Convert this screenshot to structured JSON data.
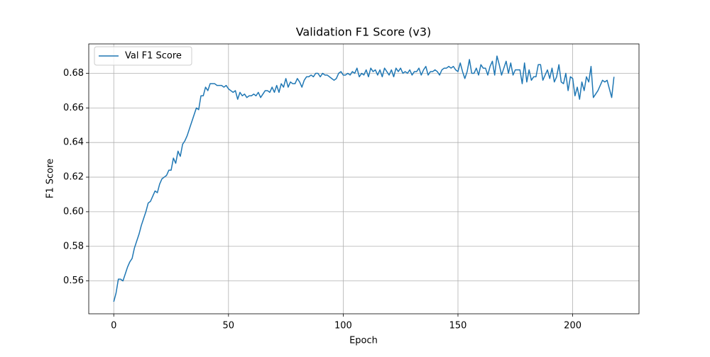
{
  "chart_data": {
    "type": "line",
    "title": "Validation F1 Score (v3)",
    "x_label": "Epoch",
    "y_label": "F1 Score",
    "x": [
      0,
      1,
      2,
      3,
      4,
      5,
      6,
      7,
      8,
      9,
      10,
      11,
      12,
      13,
      14,
      15,
      16,
      17,
      18,
      19,
      20,
      21,
      22,
      23,
      24,
      25,
      26,
      27,
      28,
      29,
      30,
      31,
      32,
      33,
      34,
      35,
      36,
      37,
      38,
      39,
      40,
      41,
      42,
      43,
      44,
      45,
      46,
      47,
      48,
      49,
      50,
      51,
      52,
      53,
      54,
      55,
      56,
      57,
      58,
      59,
      60,
      61,
      62,
      63,
      64,
      65,
      66,
      67,
      68,
      69,
      70,
      71,
      72,
      73,
      74,
      75,
      76,
      77,
      78,
      79,
      80,
      81,
      82,
      83,
      84,
      85,
      86,
      87,
      88,
      89,
      90,
      91,
      92,
      93,
      94,
      95,
      96,
      97,
      98,
      99,
      100,
      101,
      102,
      103,
      104,
      105,
      106,
      107,
      108,
      109,
      110,
      111,
      112,
      113,
      114,
      115,
      116,
      117,
      118,
      119,
      120,
      121,
      122,
      123,
      124,
      125,
      126,
      127,
      128,
      129,
      130,
      131,
      132,
      133,
      134,
      135,
      136,
      137,
      138,
      139,
      140,
      141,
      142,
      143,
      144,
      145,
      146,
      147,
      148,
      149,
      150,
      151,
      152,
      153,
      154,
      155,
      156,
      157,
      158,
      159,
      160,
      161,
      162,
      163,
      164,
      165,
      166,
      167,
      168,
      169,
      170,
      171,
      172,
      173,
      174,
      175,
      176,
      177,
      178,
      179,
      180,
      181,
      182,
      183,
      184,
      185,
      186,
      187,
      188,
      189,
      190,
      191,
      192,
      193,
      194,
      195,
      196,
      197,
      198,
      199,
      200,
      201,
      202,
      203,
      204,
      205,
      206,
      207,
      208,
      209,
      210,
      211,
      212,
      213,
      214,
      215,
      216,
      217,
      218
    ],
    "series": [
      {
        "name": "Val F1 Score",
        "color": "#1f77b4",
        "values": [
          0.548,
          0.553,
          0.561,
          0.561,
          0.56,
          0.564,
          0.568,
          0.571,
          0.573,
          0.579,
          0.583,
          0.587,
          0.592,
          0.596,
          0.6,
          0.605,
          0.606,
          0.609,
          0.612,
          0.611,
          0.616,
          0.619,
          0.62,
          0.621,
          0.624,
          0.624,
          0.631,
          0.628,
          0.635,
          0.632,
          0.639,
          0.641,
          0.644,
          0.648,
          0.652,
          0.656,
          0.66,
          0.659,
          0.667,
          0.667,
          0.672,
          0.67,
          0.674,
          0.674,
          0.674,
          0.673,
          0.673,
          0.673,
          0.672,
          0.673,
          0.671,
          0.67,
          0.669,
          0.67,
          0.665,
          0.669,
          0.667,
          0.668,
          0.666,
          0.667,
          0.667,
          0.668,
          0.667,
          0.669,
          0.666,
          0.668,
          0.67,
          0.67,
          0.669,
          0.672,
          0.669,
          0.673,
          0.669,
          0.674,
          0.672,
          0.677,
          0.672,
          0.675,
          0.674,
          0.674,
          0.677,
          0.675,
          0.672,
          0.676,
          0.678,
          0.678,
          0.679,
          0.678,
          0.68,
          0.68,
          0.678,
          0.68,
          0.679,
          0.679,
          0.678,
          0.677,
          0.676,
          0.677,
          0.68,
          0.681,
          0.679,
          0.679,
          0.68,
          0.679,
          0.681,
          0.68,
          0.683,
          0.678,
          0.68,
          0.679,
          0.682,
          0.678,
          0.683,
          0.681,
          0.682,
          0.679,
          0.682,
          0.678,
          0.683,
          0.681,
          0.679,
          0.682,
          0.678,
          0.683,
          0.681,
          0.683,
          0.68,
          0.681,
          0.68,
          0.682,
          0.679,
          0.681,
          0.681,
          0.683,
          0.679,
          0.682,
          0.684,
          0.679,
          0.681,
          0.681,
          0.682,
          0.681,
          0.679,
          0.682,
          0.683,
          0.683,
          0.684,
          0.683,
          0.684,
          0.682,
          0.681,
          0.686,
          0.681,
          0.677,
          0.681,
          0.688,
          0.68,
          0.68,
          0.683,
          0.679,
          0.685,
          0.683,
          0.683,
          0.679,
          0.684,
          0.687,
          0.679,
          0.69,
          0.685,
          0.679,
          0.683,
          0.687,
          0.68,
          0.686,
          0.679,
          0.682,
          0.682,
          0.682,
          0.674,
          0.686,
          0.675,
          0.682,
          0.676,
          0.678,
          0.678,
          0.685,
          0.685,
          0.676,
          0.679,
          0.682,
          0.677,
          0.683,
          0.675,
          0.678,
          0.685,
          0.675,
          0.674,
          0.68,
          0.67,
          0.678,
          0.677,
          0.667,
          0.672,
          0.665,
          0.675,
          0.67,
          0.678,
          0.675,
          0.684,
          0.666,
          0.668,
          0.67,
          0.673,
          0.676,
          0.675,
          0.676,
          0.671,
          0.666,
          0.678
        ]
      }
    ],
    "xlim": [
      -10.9,
      228.9
    ],
    "ylim": [
      0.541,
      0.697
    ],
    "xticks": [
      0,
      50,
      100,
      150,
      200
    ],
    "yticks": [
      0.56,
      0.58,
      {
        "value": 0.6,
        "label": "0.60"
      },
      0.62,
      0.64,
      0.66,
      0.68
    ],
    "grid": true,
    "legend": "upper left"
  }
}
